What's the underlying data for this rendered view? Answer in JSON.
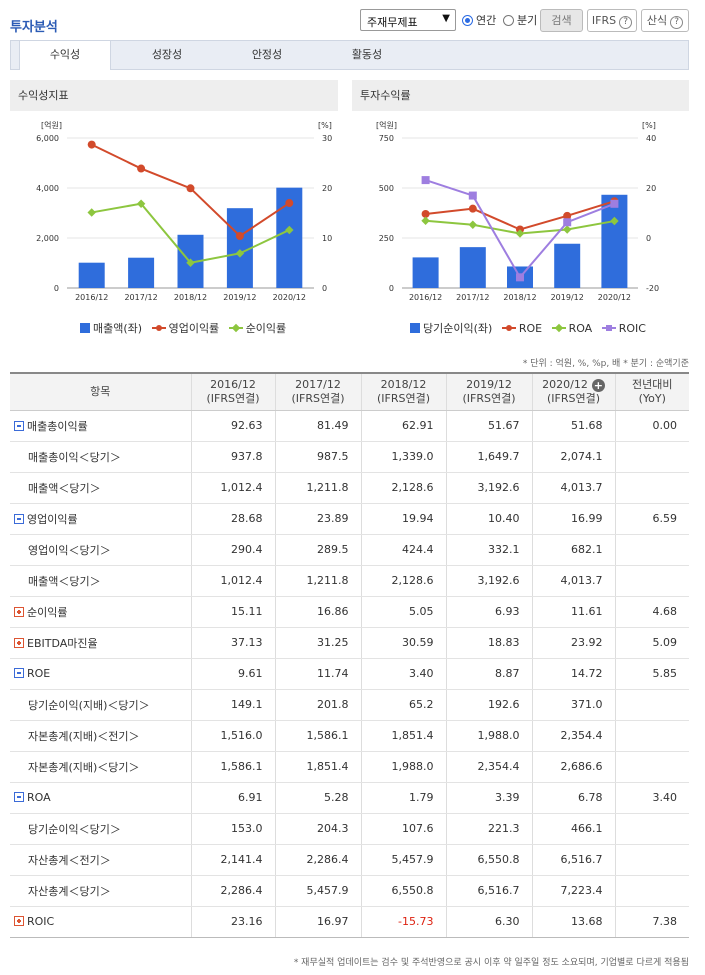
{
  "header": {
    "title": "투자분석",
    "select_value": "주재무제표",
    "radio_annual": "연간",
    "radio_quarter": "분기",
    "search_btn": "검색",
    "ifrs_btn": "IFRS",
    "formula_btn": "산식"
  },
  "tabs": [
    "수익성",
    "성장성",
    "안정성",
    "활동성"
  ],
  "panels": {
    "left_title": "수익성지표",
    "right_title": "투자수익률"
  },
  "chart_data": [
    {
      "type": "bar+line",
      "title": "수익성지표",
      "categories": [
        "2016/12",
        "2017/12",
        "2018/12",
        "2019/12",
        "2020/12"
      ],
      "left_unit": "[억원]",
      "right_unit": "[%]",
      "left_ylim": [
        0,
        6000
      ],
      "right_ylim": [
        0,
        30
      ],
      "left_ticks": [
        "6,000",
        "4,000",
        "2,000",
        "0"
      ],
      "right_ticks": [
        "30",
        "20",
        "10",
        "0"
      ],
      "series": [
        {
          "name": "매출액(좌)",
          "kind": "bar",
          "axis": "left",
          "color": "#2f6ddc",
          "values": [
            1012.4,
            1211.8,
            2128.6,
            3192.6,
            4013.7
          ]
        },
        {
          "name": "영업이익률",
          "kind": "line",
          "axis": "right",
          "color": "#d24a2b",
          "values": [
            28.68,
            23.89,
            19.94,
            10.4,
            16.99
          ]
        },
        {
          "name": "순이익률",
          "kind": "line",
          "axis": "right",
          "color": "#8dc63f",
          "values": [
            15.11,
            16.86,
            5.05,
            6.93,
            11.61
          ]
        }
      ]
    },
    {
      "type": "bar+line",
      "title": "투자수익률",
      "categories": [
        "2016/12",
        "2017/12",
        "2018/12",
        "2019/12",
        "2020/12"
      ],
      "left_unit": "[억원]",
      "right_unit": "[%]",
      "left_ylim": [
        0,
        750
      ],
      "right_ylim": [
        -20,
        40
      ],
      "left_ticks": [
        "750",
        "500",
        "250",
        "0"
      ],
      "right_ticks": [
        "40",
        "20",
        "0",
        "-20"
      ],
      "series": [
        {
          "name": "당기순이익(좌)",
          "kind": "bar",
          "axis": "left",
          "color": "#2f6ddc",
          "values": [
            153.0,
            204.3,
            107.6,
            221.3,
            466.1
          ]
        },
        {
          "name": "ROE",
          "kind": "line",
          "axis": "right",
          "color": "#d24a2b",
          "values": [
            9.61,
            11.74,
            3.4,
            8.87,
            14.72
          ]
        },
        {
          "name": "ROA",
          "kind": "line",
          "axis": "right",
          "color": "#8dc63f",
          "values": [
            6.91,
            5.28,
            1.79,
            3.39,
            6.78
          ]
        },
        {
          "name": "ROIC",
          "kind": "line",
          "axis": "right",
          "color": "#9e7ee0",
          "values": [
            23.16,
            16.97,
            -15.73,
            6.3,
            13.68
          ]
        }
      ]
    }
  ],
  "note": "* 단위 : 억원, %, %p, 배   * 분기 : 순액기준",
  "table": {
    "headers": [
      {
        "a": "항목",
        "b": ""
      },
      {
        "a": "2016/12",
        "b": "(IFRS연결)"
      },
      {
        "a": "2017/12",
        "b": "(IFRS연결)"
      },
      {
        "a": "2018/12",
        "b": "(IFRS연결)"
      },
      {
        "a": "2019/12",
        "b": "(IFRS연결)"
      },
      {
        "a": "2020/12",
        "b": "(IFRS연결)"
      },
      {
        "a": "전년대비",
        "b": "(YoY)"
      }
    ],
    "rows": [
      {
        "label": "매출총이익률",
        "kind": "minus",
        "cells": [
          "92.63",
          "81.49",
          "62.91",
          "51.67",
          "51.68",
          "0.00"
        ]
      },
      {
        "label": "매출총이익＜당기＞",
        "kind": "sub",
        "cells": [
          "937.8",
          "987.5",
          "1,339.0",
          "1,649.7",
          "2,074.1",
          ""
        ]
      },
      {
        "label": "매출액＜당기＞",
        "kind": "sub",
        "cells": [
          "1,012.4",
          "1,211.8",
          "2,128.6",
          "3,192.6",
          "4,013.7",
          ""
        ]
      },
      {
        "label": "영업이익률",
        "kind": "minus",
        "cells": [
          "28.68",
          "23.89",
          "19.94",
          "10.40",
          "16.99",
          "6.59"
        ]
      },
      {
        "label": "영업이익＜당기＞",
        "kind": "sub",
        "cells": [
          "290.4",
          "289.5",
          "424.4",
          "332.1",
          "682.1",
          ""
        ]
      },
      {
        "label": "매출액＜당기＞",
        "kind": "sub",
        "cells": [
          "1,012.4",
          "1,211.8",
          "2,128.6",
          "3,192.6",
          "4,013.7",
          ""
        ]
      },
      {
        "label": "순이익률",
        "kind": "plus",
        "cells": [
          "15.11",
          "16.86",
          "5.05",
          "6.93",
          "11.61",
          "4.68"
        ]
      },
      {
        "label": "EBITDA마진율",
        "kind": "plus",
        "cells": [
          "37.13",
          "31.25",
          "30.59",
          "18.83",
          "23.92",
          "5.09"
        ]
      },
      {
        "label": "ROE",
        "kind": "minus",
        "cells": [
          "9.61",
          "11.74",
          "3.40",
          "8.87",
          "14.72",
          "5.85"
        ]
      },
      {
        "label": "당기순이익(지배)＜당기＞",
        "kind": "sub",
        "cells": [
          "149.1",
          "201.8",
          "65.2",
          "192.6",
          "371.0",
          ""
        ]
      },
      {
        "label": "자본총계(지배)＜전기＞",
        "kind": "sub",
        "cells": [
          "1,516.0",
          "1,586.1",
          "1,851.4",
          "1,988.0",
          "2,354.4",
          ""
        ]
      },
      {
        "label": "자본총계(지배)＜당기＞",
        "kind": "sub",
        "cells": [
          "1,586.1",
          "1,851.4",
          "1,988.0",
          "2,354.4",
          "2,686.6",
          ""
        ]
      },
      {
        "label": "ROA",
        "kind": "minus",
        "cells": [
          "6.91",
          "5.28",
          "1.79",
          "3.39",
          "6.78",
          "3.40"
        ]
      },
      {
        "label": "당기순이익＜당기＞",
        "kind": "sub",
        "cells": [
          "153.0",
          "204.3",
          "107.6",
          "221.3",
          "466.1",
          ""
        ]
      },
      {
        "label": "자산총계＜전기＞",
        "kind": "sub",
        "cells": [
          "2,141.4",
          "2,286.4",
          "5,457.9",
          "6,550.8",
          "6,516.7",
          ""
        ]
      },
      {
        "label": "자산총계＜당기＞",
        "kind": "sub",
        "cells": [
          "2,286.4",
          "5,457.9",
          "6,550.8",
          "6,516.7",
          "7,223.4",
          ""
        ]
      },
      {
        "label": "ROIC",
        "kind": "plus",
        "cells": [
          "23.16",
          "16.97",
          "-15.73",
          "6.30",
          "13.68",
          "7.38"
        ]
      }
    ]
  },
  "footnote": "* 재무실적 업데이트는 검수 및 주석반영으로 공시 이후 약 일주일 정도 소요되며, 기업별로 다르게 적용됨"
}
